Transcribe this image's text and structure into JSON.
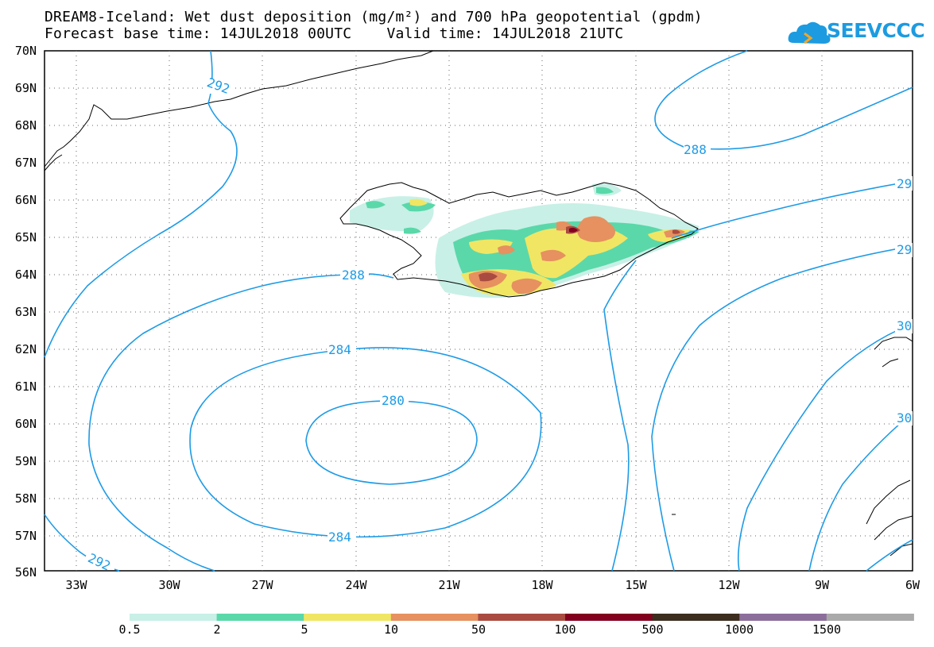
{
  "title_line1": "DREAM8-Iceland: Wet dust deposition (mg/m²) and 700 hPa geopotential (gpdm)",
  "title_line2": "Forecast base time: 14JUL2018 00UTC    Valid time: 14JUL2018 21UTC",
  "logo_text": "SEEVCCC",
  "lat_labels": [
    "70N",
    "69N",
    "68N",
    "67N",
    "66N",
    "65N",
    "64N",
    "63N",
    "62N",
    "61N",
    "60N",
    "59N",
    "58N",
    "57N",
    "56N"
  ],
  "lon_labels": [
    "33W",
    "30W",
    "27W",
    "24W",
    "21W",
    "18W",
    "15W",
    "12W",
    "9W",
    "6W"
  ],
  "contour_labels": {
    "c292_top": "292",
    "c288_top": "288",
    "c288_mid": "288",
    "c284_top": "284",
    "c280": "280",
    "c284_bottom": "284",
    "c292_bottom": "292",
    "right_a": "29",
    "right_b": "29",
    "right_c": "30",
    "right_d": "30"
  },
  "colorbar": {
    "labels": [
      "0.5",
      "2",
      "5",
      "10",
      "50",
      "100",
      "500",
      "1000",
      "1500"
    ],
    "colors": [
      "#c8f0e6",
      "#5ad8aa",
      "#f0e664",
      "#e6915f",
      "#aa4b41",
      "#82001e",
      "#3c2d1e",
      "#8c6e9b",
      "#aaaaaa"
    ]
  },
  "contour_color": "#1e9be6"
}
